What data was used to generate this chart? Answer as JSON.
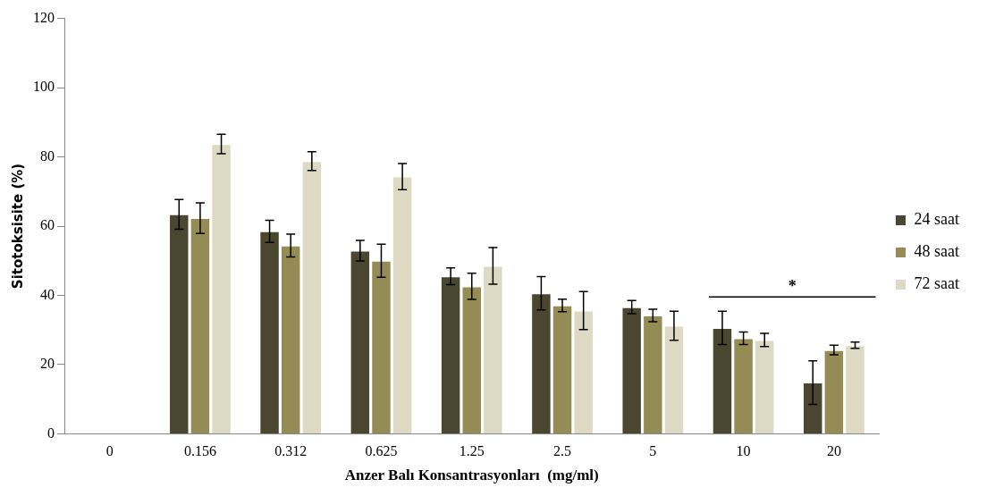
{
  "chart_data": {
    "type": "bar",
    "xlabel": "Anzer Balı Konsantrasyonları  (mg/ml)",
    "ylabel": "Sitotoksisite (%)",
    "categories": [
      "0",
      "0.156",
      "0.312",
      "0.625",
      "1.25",
      "2.5",
      "5",
      "10",
      "20"
    ],
    "series": [
      {
        "name": "24 saat",
        "color": "#4a4630",
        "values": [
          null,
          63.4,
          58.5,
          52.9,
          45.5,
          40.6,
          36.6,
          30.6,
          14.8
        ],
        "errors": [
          null,
          4.3,
          3.2,
          3,
          2.4,
          4.8,
          1.9,
          4.8,
          6.3
        ]
      },
      {
        "name": "48 saat",
        "color": "#958b55",
        "values": [
          null,
          62.3,
          54.4,
          50,
          42.6,
          37.1,
          34.2,
          27.6,
          24.2
        ],
        "errors": [
          null,
          4.4,
          3.3,
          4.8,
          3.8,
          1.8,
          1.8,
          1.8,
          1.4
        ]
      },
      {
        "name": "72 saat",
        "color": "#ddd9c3",
        "values": [
          null,
          83.7,
          78.8,
          74.3,
          48.5,
          35.6,
          31.2,
          27.1,
          25.6
        ],
        "errors": [
          null,
          2.8,
          2.7,
          3.8,
          5.3,
          5.5,
          4.2,
          1.9,
          0.9
        ]
      }
    ],
    "ylim": [
      0,
      120
    ],
    "yticks": [
      0,
      20,
      40,
      60,
      80,
      100,
      120
    ],
    "grid": false,
    "legend": "right",
    "annotations": [
      "*"
    ]
  }
}
